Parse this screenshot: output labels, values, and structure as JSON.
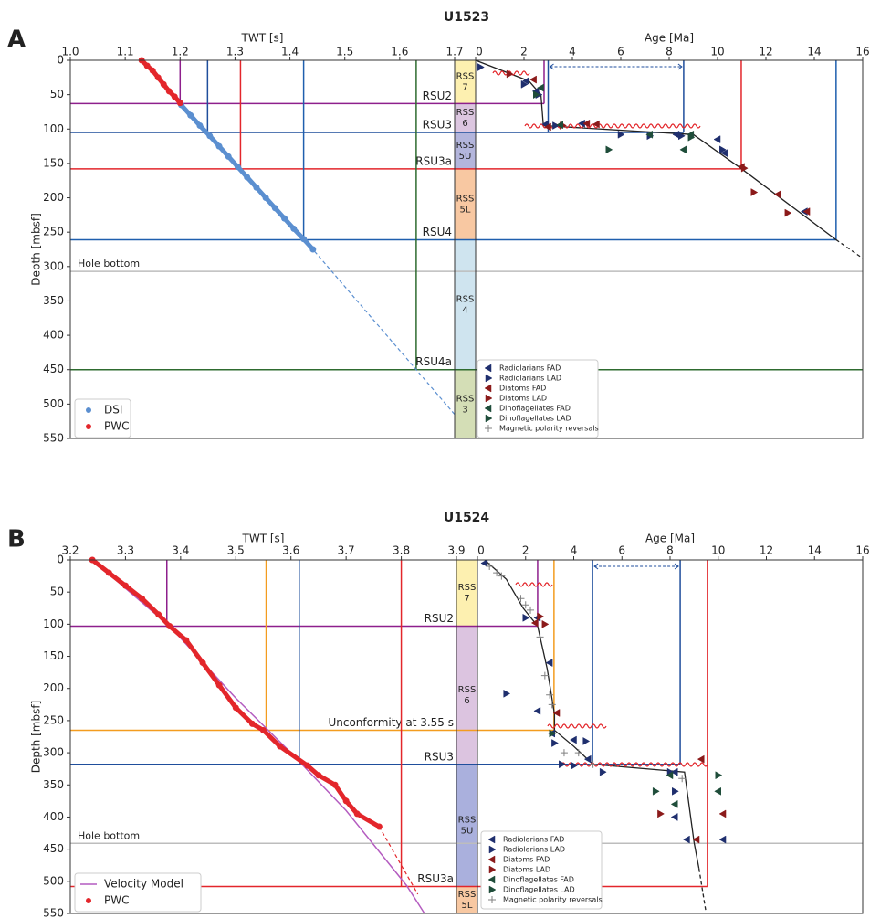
{
  "chart_data": [
    {
      "type": "depth-panel",
      "panel": "A",
      "title": "U1523",
      "ylabel": "Depth [mbsf]",
      "ylim": [
        0,
        550
      ],
      "yticks": [
        0,
        50,
        100,
        150,
        200,
        250,
        300,
        350,
        400,
        450,
        500,
        550
      ],
      "twt": {
        "xlabel": "TWT [s]",
        "xlim": [
          1.0,
          1.7
        ],
        "xticks": [
          {
            "value": 1,
            "label": "1.0"
          },
          1.1,
          1.2,
          1.3,
          1.4,
          1.5,
          1.6,
          1.7
        ],
        "series": [
          {
            "name": "DSI",
            "color": "#5b8fd0",
            "style": "points",
            "twt": [
              1.202,
              1.219,
              1.236,
              1.254,
              1.271,
              1.288,
              1.305,
              1.322,
              1.339,
              1.356,
              1.373,
              1.39,
              1.407,
              1.425,
              1.442
            ],
            "depth": [
              65,
              80,
              95,
              110,
              125,
              140,
              155,
              170,
              185,
              200,
              215,
              230,
              245,
              260,
              275
            ]
          },
          {
            "name": "PWC",
            "color": "#e3262b",
            "style": "points",
            "twt": [
              1.13,
              1.14,
              1.15,
              1.16,
              1.17,
              1.18,
              1.19,
              1.2
            ],
            "depth": [
              0,
              8,
              15,
              25,
              35,
              45,
              53,
              62
            ]
          }
        ],
        "extrapolation": {
          "color": "#5b8fd0",
          "twt": [
            1.445,
            1.7
          ],
          "depth": [
            278,
            515
          ]
        }
      },
      "units": [
        {
          "label": [
            "RSS",
            "7"
          ],
          "top": 0,
          "base": 63,
          "color": "#fdf0b0"
        },
        {
          "label": [
            "RSS",
            "6"
          ],
          "top": 63,
          "base": 105,
          "color": "#dcc6e0"
        },
        {
          "label": [
            "RSS",
            "5U"
          ],
          "top": 105,
          "base": 158,
          "color": "#b3b5dc"
        },
        {
          "label": [
            "RSS",
            "5L"
          ],
          "top": 158,
          "base": 261,
          "color": "#f8c8a2"
        },
        {
          "label": [
            "RSS",
            "4"
          ],
          "top": 261,
          "base": 450,
          "color": "#cfe4ef"
        },
        {
          "label": [
            "RSS",
            "3"
          ],
          "top": 450,
          "base": 550,
          "color": "#d4deb6"
        }
      ],
      "horizons": [
        {
          "name": "RSU2",
          "depth": 63,
          "color": "#8e1f8c",
          "twt": 1.2,
          "age": [
            2.83
          ]
        },
        {
          "name": "RSU3",
          "depth": 105,
          "color": "#1f4e9c",
          "twt": 1.25,
          "age": [
            3.0,
            8.6
          ]
        },
        {
          "name": "RSU3a",
          "depth": 158,
          "color": "#e3262b",
          "twt": 1.31,
          "age": [
            10.98
          ]
        },
        {
          "name": "RSU4",
          "depth": 261,
          "color": "#1f5fae",
          "twt": 1.425,
          "age": [
            14.9
          ]
        },
        {
          "name": "Hole bottom",
          "depth": 307,
          "color": "#bdbdbd",
          "twt": null,
          "age": null
        },
        {
          "name": "RSU4a",
          "depth": 450,
          "color": "#2e6b2f",
          "twt": 1.63,
          "age": null
        }
      ],
      "age": {
        "xlabel": "Age [Ma]",
        "xlim": [
          0,
          16
        ],
        "xticks": [
          0,
          2,
          4,
          6,
          8,
          10,
          12,
          14,
          16
        ],
        "model": {
          "color": "#222222",
          "age": [
            0,
            2.2,
            2.7,
            2.8,
            9.0,
            11,
            14.9
          ],
          "depth": [
            0,
            30,
            50,
            95,
            108,
            158,
            261
          ]
        },
        "model_extrapolation": {
          "age": [
            14.9,
            16
          ],
          "depth": [
            261,
            288
          ]
        },
        "series": [
          {
            "name": "Radiolarians FAD",
            "color": "#1f2f6e",
            "marker": "left",
            "age": [
              2.1,
              2.5,
              2.9,
              4.4,
              8.3,
              10.0,
              10.3,
              13.6
            ],
            "depth": [
              30,
              45,
              93,
              92,
              108,
              115,
              135,
              220
            ]
          },
          {
            "name": "Radiolarians LAD",
            "color": "#1f2f6e",
            "marker": "right",
            "age": [
              0.2,
              2.0,
              2.6,
              3.3,
              6.0,
              7.2,
              8.5,
              10.2
            ],
            "depth": [
              10,
              35,
              50,
              95,
              108,
              110,
              110,
              130
            ]
          },
          {
            "name": "Diatoms FAD",
            "color": "#8b1a1a",
            "marker": "left",
            "age": [
              2.4,
              3.0,
              4.6,
              5.0,
              11.0,
              12.5,
              13.7
            ],
            "depth": [
              28,
              97,
              92,
              93,
              155,
              195,
              220
            ]
          },
          {
            "name": "Diatoms LAD",
            "color": "#8b1a1a",
            "marker": "right",
            "age": [
              1.4,
              3.6,
              11.5,
              12.9,
              11.1
            ],
            "depth": [
              20,
              95,
              192,
              222,
              157
            ]
          },
          {
            "name": "Dinoflagellates FAD",
            "color": "#1f4d3a",
            "marker": "left",
            "age": [
              2.7,
              3.5,
              7.2,
              8.6,
              8.9
            ],
            "depth": [
              40,
              94,
              108,
              130,
              108
            ]
          },
          {
            "name": "Dinoflagellates LAD",
            "color": "#1f4d3a",
            "marker": "right",
            "age": [
              2.5,
              5.5,
              8.9
            ],
            "depth": [
              50,
              130,
              112
            ]
          },
          {
            "name": "Magnetic polarity reversals",
            "color": "#808080",
            "marker": "plus",
            "age": [],
            "depth": []
          }
        ]
      }
    },
    {
      "type": "depth-panel",
      "panel": "B",
      "title": "U1524",
      "ylabel": "Depth [mbsf]",
      "ylim": [
        0,
        550
      ],
      "yticks": [
        0,
        50,
        100,
        150,
        200,
        250,
        300,
        350,
        400,
        450,
        500,
        550
      ],
      "twt": {
        "xlabel": "TWT [s]",
        "xlim": [
          3.2,
          3.9
        ],
        "xticks": [
          3.2,
          3.3,
          3.4,
          3.5,
          3.6,
          3.7,
          3.8,
          3.9
        ],
        "series": [
          {
            "name": "Velocity Model",
            "color": "#b45cc0",
            "style": "line",
            "twt": [
              3.24,
              3.38,
              3.5,
              3.6,
              3.7,
              3.81,
              3.842
            ],
            "depth": [
              0,
              103,
              215,
              300,
              390,
              507,
              550
            ]
          },
          {
            "name": "PWC",
            "color": "#e3262b",
            "style": "points",
            "twt": [
              3.24,
              3.27,
              3.3,
              3.33,
              3.36,
              3.38,
              3.41,
              3.44,
              3.47,
              3.5,
              3.53,
              3.55,
              3.58,
              3.63,
              3.65,
              3.68,
              3.7,
              3.72,
              3.76
            ],
            "depth": [
              0,
              20,
              40,
              60,
              85,
              103,
              125,
              160,
              195,
              230,
              255,
              265,
              290,
              320,
              335,
              350,
              375,
              395,
              415
            ]
          }
        ],
        "extrapolation": {
          "color": "#e3262b",
          "twt": [
            3.76,
            3.83
          ],
          "depth": [
            415,
            520
          ]
        }
      },
      "units": [
        {
          "label": [
            "RSS",
            "7"
          ],
          "top": 0,
          "base": 103,
          "color": "#fdf0b0"
        },
        {
          "label": [
            "RSS",
            "6"
          ],
          "top": 103,
          "base": 318,
          "color": "#dcc4e0"
        },
        {
          "label": [
            "RSS",
            "5U"
          ],
          "top": 318,
          "base": 508,
          "color": "#aab0dd"
        },
        {
          "label": [
            "RSS",
            "5L"
          ],
          "top": 508,
          "base": 550,
          "color": "#f8c8a2"
        }
      ],
      "horizons": [
        {
          "name": "RSU2",
          "depth": 103,
          "color": "#8e1f8c",
          "twt": 3.375,
          "age": [
            2.5
          ]
        },
        {
          "name": "Unconformity at 3.55 s",
          "depth": 265,
          "color": "#f39c1f",
          "twt": 3.555,
          "age": [
            3.18
          ]
        },
        {
          "name": "RSU3",
          "depth": 318,
          "color": "#1f4e9c",
          "twt": 3.615,
          "age": [
            4.78,
            8.42
          ]
        },
        {
          "name": "Hole bottom",
          "depth": 441,
          "color": "#bdbdbd",
          "twt": null,
          "age": null
        },
        {
          "name": "RSU3a",
          "depth": 508,
          "color": "#e3262b",
          "twt": 3.8,
          "age": [
            9.55
          ]
        }
      ],
      "age": {
        "xlabel": "Age [Ma]",
        "xlim": [
          0,
          16
        ],
        "xticks": [
          0,
          2,
          4,
          6,
          8,
          10,
          12,
          14,
          16
        ],
        "model": {
          "color": "#222222",
          "age": [
            0.3,
            1.2,
            1.9,
            2.5,
            2.9,
            3.2,
            3.2,
            4.0,
            4.8,
            8.6,
            9.0,
            9.2
          ],
          "depth": [
            0,
            30,
            75,
            103,
            170,
            240,
            265,
            290,
            318,
            330,
            440,
            480
          ]
        },
        "model_extrapolation": {
          "age": [
            9.2,
            9.5
          ],
          "depth": [
            480,
            550
          ]
        },
        "series": [
          {
            "name": "Radiolarians FAD",
            "color": "#1f2f6e",
            "marker": "left",
            "age": [
              0.3,
              2.5,
              3.0,
              2.5,
              3.1,
              4.0,
              4.6,
              8.2,
              8.2,
              8.7,
              10.2
            ],
            "depth": [
              5,
              90,
              160,
              235,
              270,
              280,
              310,
              330,
              400,
              435,
              435
            ]
          },
          {
            "name": "Radiolarians LAD",
            "color": "#1f2f6e",
            "marker": "right",
            "age": [
              2.0,
              1.2,
              3.2,
              4.5,
              3.5,
              4.0,
              5.2,
              8.0,
              8.2
            ],
            "depth": [
              90,
              208,
              285,
              282,
              318,
              320,
              330,
              330,
              360
            ]
          },
          {
            "name": "Diatoms FAD",
            "color": "#8b1a1a",
            "marker": "left",
            "age": [
              2.4,
              3.3,
              9.3,
              10.2,
              9.1
            ],
            "depth": [
              98,
              238,
              310,
              395,
              435
            ]
          },
          {
            "name": "Diatoms LAD",
            "color": "#8b1a1a",
            "marker": "right",
            "age": [
              2.6,
              2.8,
              7.6
            ],
            "depth": [
              88,
              100,
              395
            ]
          },
          {
            "name": "Dinoflagellates FAD",
            "color": "#1f4d3a",
            "marker": "left",
            "age": [
              8.0,
              10.0,
              8.2
            ],
            "depth": [
              335,
              360,
              380
            ]
          },
          {
            "name": "Dinoflagellates LAD",
            "color": "#1f4d3a",
            "marker": "right",
            "age": [
              7.4,
              10.0,
              3.1
            ],
            "depth": [
              360,
              335,
              270
            ]
          },
          {
            "name": "Magnetic polarity reversals",
            "color": "#808080",
            "marker": "plus",
            "age": [
              0.5,
              0.8,
              1.0,
              1.8,
              2.0,
              2.2,
              2.6,
              2.8,
              3.0,
              3.1,
              3.6,
              4.2,
              4.8,
              8.5
            ],
            "depth": [
              10,
              20,
              25,
              60,
              70,
              78,
              120,
              180,
              210,
              225,
              300,
              300,
              318,
              340
            ]
          }
        ]
      }
    }
  ]
}
